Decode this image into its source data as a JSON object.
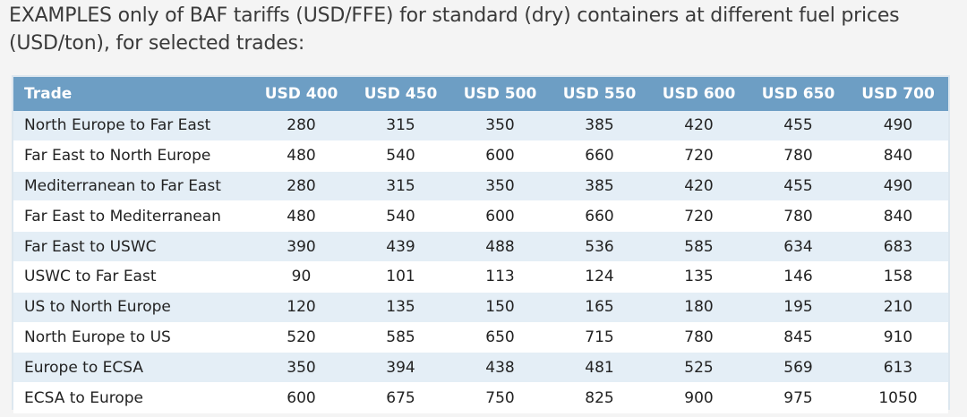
{
  "caption": "EXAMPLES only of BAF tariffs (USD/FFE) for standard (dry) containers at different fuel prices (USD/ton), for selected trades:",
  "table": {
    "headers": [
      "Trade",
      "USD 400",
      "USD 450",
      "USD 500",
      "USD 550",
      "USD 600",
      "USD 650",
      "USD 700"
    ],
    "rows": [
      [
        "North Europe to Far East",
        "280",
        "315",
        "350",
        "385",
        "420",
        "455",
        "490"
      ],
      [
        "Far East to North Europe",
        "480",
        "540",
        "600",
        "660",
        "720",
        "780",
        "840"
      ],
      [
        "Mediterranean to Far East",
        "280",
        "315",
        "350",
        "385",
        "420",
        "455",
        "490"
      ],
      [
        "Far East to Mediterranean",
        "480",
        "540",
        "600",
        "660",
        "720",
        "780",
        "840"
      ],
      [
        "Far East to USWC",
        "390",
        "439",
        "488",
        "536",
        "585",
        "634",
        "683"
      ],
      [
        "USWC to Far East",
        "90",
        "101",
        "113",
        "124",
        "135",
        "146",
        "158"
      ],
      [
        "US to North Europe",
        "120",
        "135",
        "150",
        "165",
        "180",
        "195",
        "210"
      ],
      [
        "North Europe to US",
        "520",
        "585",
        "650",
        "715",
        "780",
        "845",
        "910"
      ],
      [
        "Europe to ECSA",
        "350",
        "394",
        "438",
        "481",
        "525",
        "569",
        "613"
      ],
      [
        "ECSA to Europe",
        "600",
        "675",
        "750",
        "825",
        "900",
        "975",
        "1050"
      ]
    ]
  },
  "colors": {
    "header_bg": "#6d9ec4",
    "row_alt_bg": "#e4eef6",
    "row_bg": "#ffffff"
  }
}
